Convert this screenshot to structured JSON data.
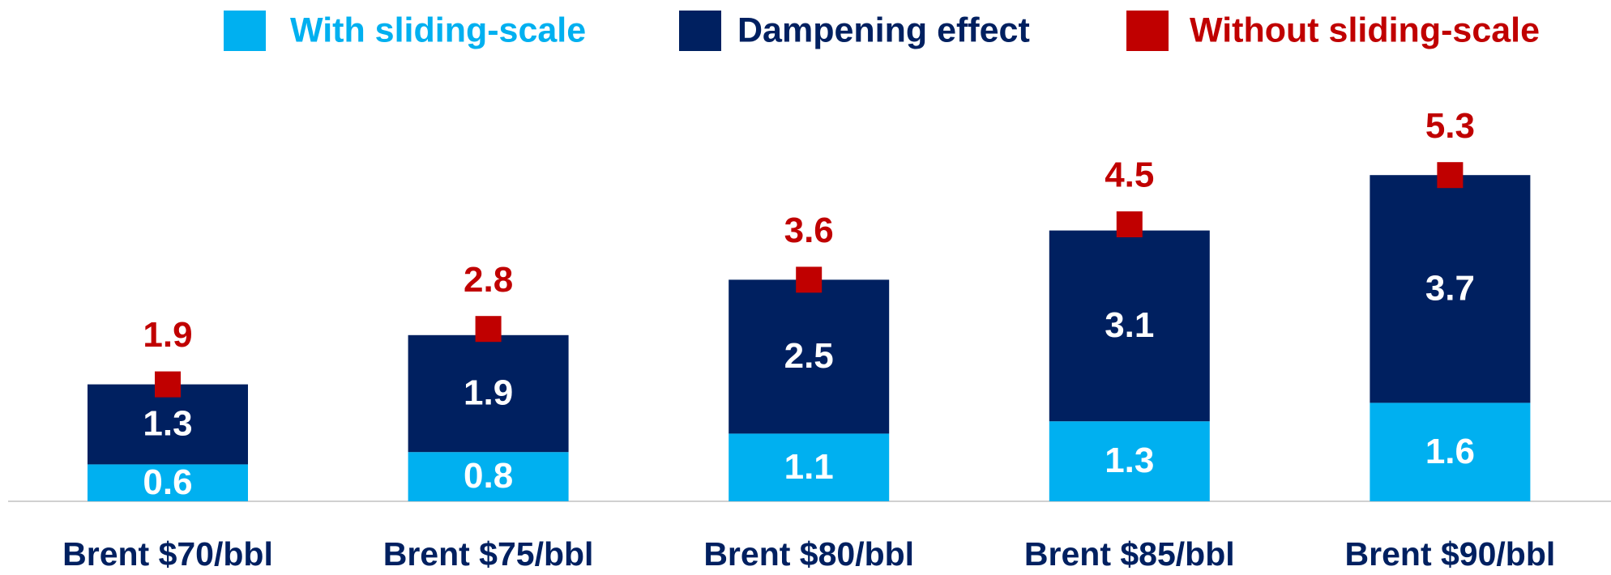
{
  "chart_data": {
    "type": "bar",
    "stacked": true,
    "categories": [
      "Brent $70/bbl",
      "Brent $75/bbl",
      "Brent $80/bbl",
      "Brent $85/bbl",
      "Brent $90/bbl"
    ],
    "series": [
      {
        "name": "With sliding-scale",
        "color": "#00b0f0",
        "type": "bar",
        "values": [
          0.6,
          0.8,
          1.1,
          1.3,
          1.6
        ]
      },
      {
        "name": "Dampening effect",
        "color": "#002060",
        "type": "bar",
        "values": [
          1.3,
          1.9,
          2.5,
          3.1,
          3.7
        ]
      },
      {
        "name": "Without sliding-scale",
        "color": "#c00000",
        "type": "marker",
        "values": [
          1.9,
          2.8,
          3.6,
          4.5,
          5.3
        ]
      }
    ],
    "ylim": [
      0,
      6
    ]
  }
}
